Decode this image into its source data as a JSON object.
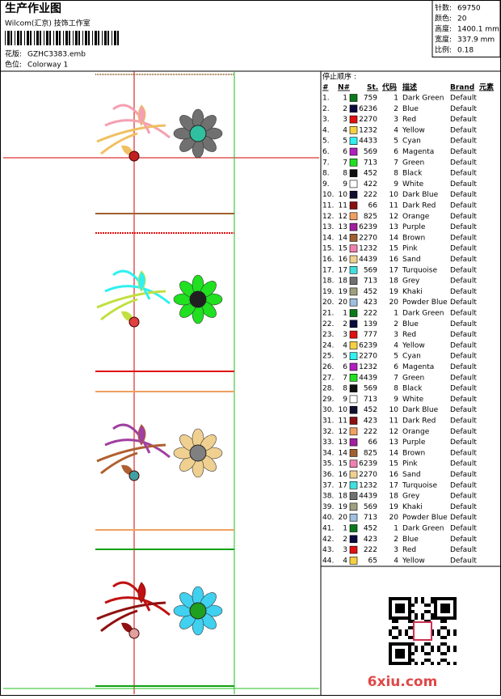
{
  "header": {
    "title": "生产作业图",
    "subtitle": "Wilcom(汇京) 技饰工作室",
    "design_label": "花版:",
    "design": "GZHC3383.emb",
    "colorway_label": "色位:",
    "colorway": "Colorway 1"
  },
  "info": [
    [
      "针数:",
      "69750"
    ],
    [
      "颜色:",
      "20"
    ],
    [
      "高度:",
      "1400.1 mm"
    ],
    [
      "宽度:",
      "337.9 mm"
    ],
    [
      "比例:",
      "0.18"
    ]
  ],
  "table": {
    "caption": "停止顺序 :",
    "columns": [
      "#",
      "N#",
      "St.",
      "代码",
      "描述",
      "Brand",
      "元素"
    ],
    "rows": [
      [
        "1.",
        "1",
        "#0a7a1a",
        "759",
        "1",
        "Dark Green",
        "Default"
      ],
      [
        "2.",
        "2",
        "#0a0a40",
        "6236",
        "2",
        "Blue",
        "Default"
      ],
      [
        "3.",
        "3",
        "#e01010",
        "2270",
        "3",
        "Red",
        "Default"
      ],
      [
        "4.",
        "4",
        "#f5d040",
        "1232",
        "4",
        "Yellow",
        "Default"
      ],
      [
        "5.",
        "5",
        "#30f0f0",
        "4433",
        "5",
        "Cyan",
        "Default"
      ],
      [
        "6.",
        "6",
        "#b020c0",
        "569",
        "6",
        "Magenta",
        "Default"
      ],
      [
        "7.",
        "7",
        "#20e020",
        "713",
        "7",
        "Green",
        "Default"
      ],
      [
        "8.",
        "8",
        "#101010",
        "452",
        "8",
        "Black",
        "Default"
      ],
      [
        "9.",
        "9",
        "#ffffff",
        "422",
        "9",
        "White",
        "Default"
      ],
      [
        "10.",
        "10",
        "#101030",
        "222",
        "10",
        "Dark Blue",
        "Default"
      ],
      [
        "11.",
        "11",
        "#8a1010",
        "66",
        "11",
        "Dark Red",
        "Default"
      ],
      [
        "12.",
        "12",
        "#f0a060",
        "825",
        "12",
        "Orange",
        "Default"
      ],
      [
        "13.",
        "13",
        "#a020a0",
        "6239",
        "13",
        "Purple",
        "Default"
      ],
      [
        "14.",
        "14",
        "#a06030",
        "2270",
        "14",
        "Brown",
        "Default"
      ],
      [
        "15.",
        "15",
        "#f080b0",
        "1232",
        "15",
        "Pink",
        "Default"
      ],
      [
        "16.",
        "16",
        "#f0d090",
        "4439",
        "16",
        "Sand",
        "Default"
      ],
      [
        "17.",
        "17",
        "#40e0e0",
        "569",
        "17",
        "Turquoise",
        "Default"
      ],
      [
        "18.",
        "18",
        "#707070",
        "713",
        "18",
        "Grey",
        "Default"
      ],
      [
        "19.",
        "19",
        "#a0a080",
        "452",
        "19",
        "Khaki",
        "Default"
      ],
      [
        "20.",
        "20",
        "#a0c0e0",
        "423",
        "20",
        "Powder Blue",
        "Default"
      ],
      [
        "21.",
        "1",
        "#0a7a1a",
        "222",
        "1",
        "Dark Green",
        "Default"
      ],
      [
        "22.",
        "2",
        "#0a0a40",
        "139",
        "2",
        "Blue",
        "Default"
      ],
      [
        "23.",
        "3",
        "#e01010",
        "777",
        "3",
        "Red",
        "Default"
      ],
      [
        "24.",
        "4",
        "#f5d040",
        "6239",
        "4",
        "Yellow",
        "Default"
      ],
      [
        "25.",
        "5",
        "#30f0f0",
        "2270",
        "5",
        "Cyan",
        "Default"
      ],
      [
        "26.",
        "6",
        "#b020c0",
        "1232",
        "6",
        "Magenta",
        "Default"
      ],
      [
        "27.",
        "7",
        "#20e020",
        "4439",
        "7",
        "Green",
        "Default"
      ],
      [
        "28.",
        "8",
        "#101010",
        "569",
        "8",
        "Black",
        "Default"
      ],
      [
        "29.",
        "9",
        "#ffffff",
        "713",
        "9",
        "White",
        "Default"
      ],
      [
        "30.",
        "10",
        "#101030",
        "452",
        "10",
        "Dark Blue",
        "Default"
      ],
      [
        "31.",
        "11",
        "#8a1010",
        "423",
        "11",
        "Dark Red",
        "Default"
      ],
      [
        "32.",
        "12",
        "#f0a060",
        "222",
        "12",
        "Orange",
        "Default"
      ],
      [
        "33.",
        "13",
        "#a020a0",
        "66",
        "13",
        "Purple",
        "Default"
      ],
      [
        "34.",
        "14",
        "#a06030",
        "825",
        "14",
        "Brown",
        "Default"
      ],
      [
        "35.",
        "15",
        "#f080b0",
        "6239",
        "15",
        "Pink",
        "Default"
      ],
      [
        "36.",
        "16",
        "#f0d090",
        "2270",
        "16",
        "Sand",
        "Default"
      ],
      [
        "37.",
        "17",
        "#40e0e0",
        "1232",
        "17",
        "Turquoise",
        "Default"
      ],
      [
        "38.",
        "18",
        "#707070",
        "4439",
        "18",
        "Grey",
        "Default"
      ],
      [
        "39.",
        "19",
        "#a0a080",
        "569",
        "19",
        "Khaki",
        "Default"
      ],
      [
        "40.",
        "20",
        "#a0c0e0",
        "713",
        "20",
        "Powder Blue",
        "Default"
      ],
      [
        "41.",
        "1",
        "#0a7a1a",
        "452",
        "1",
        "Dark Green",
        "Default"
      ],
      [
        "42.",
        "2",
        "#0a0a40",
        "423",
        "2",
        "Blue",
        "Default"
      ],
      [
        "43.",
        "3",
        "#e01010",
        "222",
        "3",
        "Red",
        "Default"
      ],
      [
        "44.",
        "4",
        "#f5d040",
        "65",
        "4",
        "Yellow",
        "Default"
      ]
    ]
  },
  "watermark": "6xiu.com"
}
